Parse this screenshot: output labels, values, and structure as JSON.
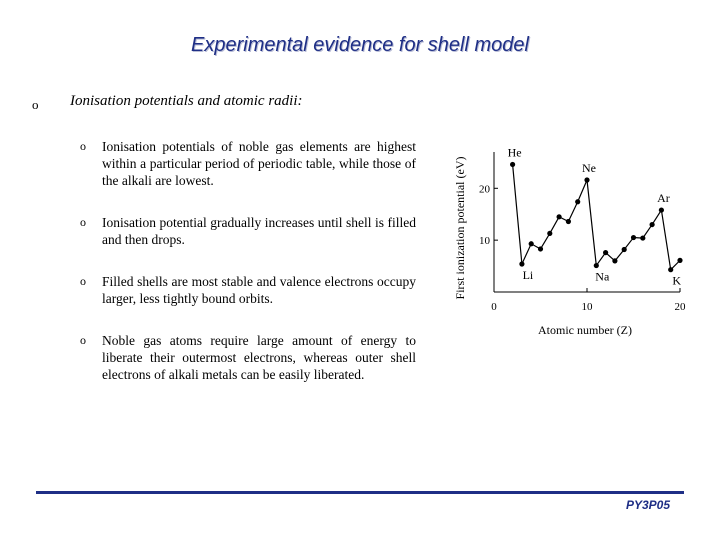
{
  "slide": {
    "title": "Experimental evidence for shell model",
    "main_bullet": "o",
    "main_text": "Ionisation potentials and atomic radii:",
    "items": [
      {
        "bullet": "o",
        "text": "Ionisation potentials of noble gas elements are highest within a particular period of periodic table, while those of the alkali are lowest."
      },
      {
        "bullet": "o",
        "text": "Ionisation potential gradually increases until shell is filled and then drops."
      },
      {
        "bullet": "o",
        "text": "Filled shells are most stable and valence electrons occupy larger, less tightly bound orbits."
      },
      {
        "bullet": "o",
        "text": "Noble gas atoms require large amount of energy to liberate their outermost electrons, whereas outer shell electrons of alkali metals can be easily liberated."
      }
    ],
    "footer": "PY3P05"
  },
  "chart_data": {
    "type": "line",
    "xlabel": "Atomic number (Z)",
    "ylabel": "First ionization potential (eV)",
    "xlim": [
      0,
      20
    ],
    "ylim": [
      0,
      27
    ],
    "xticks": [
      0,
      10,
      20
    ],
    "yticks": [
      10,
      20
    ],
    "x": [
      2,
      3,
      4,
      5,
      6,
      7,
      8,
      9,
      10,
      11,
      12,
      13,
      14,
      15,
      16,
      17,
      18,
      19,
      20
    ],
    "y": [
      24.6,
      5.4,
      9.3,
      8.3,
      11.3,
      14.5,
      13.6,
      17.4,
      21.6,
      5.1,
      7.6,
      6.0,
      8.2,
      10.5,
      10.4,
      13.0,
      15.8,
      4.3,
      6.1
    ],
    "annotations": [
      {
        "label": "He",
        "z": 2
      },
      {
        "label": "Li",
        "z": 3
      },
      {
        "label": "Ne",
        "z": 10
      },
      {
        "label": "Na",
        "z": 11
      },
      {
        "label": "Ar",
        "z": 18
      },
      {
        "label": "K",
        "z": 19
      }
    ],
    "grid": false
  }
}
